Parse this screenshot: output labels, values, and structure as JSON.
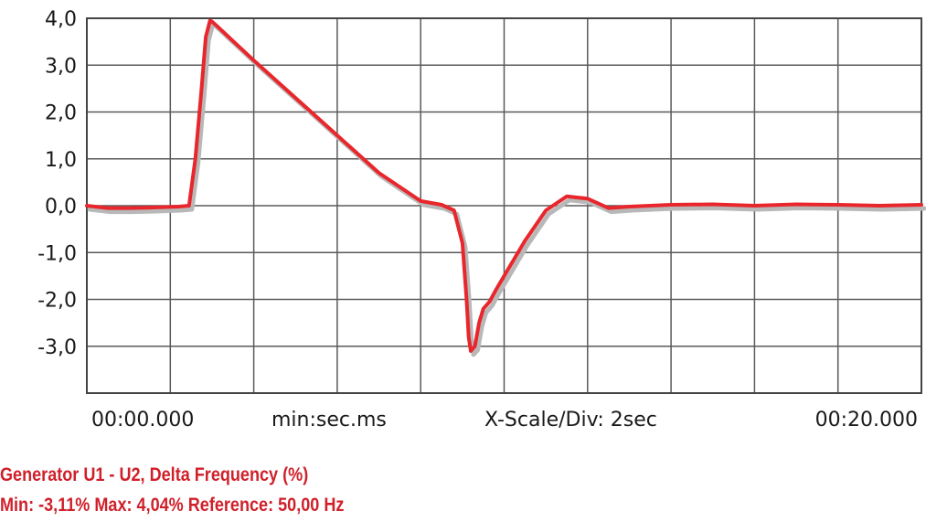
{
  "chart_data": {
    "type": "line",
    "xlim": [
      0,
      20
    ],
    "ylim": [
      -4,
      4
    ],
    "yticks": [
      {
        "value": 4,
        "label": "4,0"
      },
      {
        "value": 3,
        "label": "3,0"
      },
      {
        "value": 2,
        "label": "2,0"
      },
      {
        "value": 1,
        "label": "1,0"
      },
      {
        "value": 0,
        "label": "0,0"
      },
      {
        "value": -1,
        "label": "-1,0"
      },
      {
        "value": -2,
        "label": "-2,0"
      },
      {
        "value": -3,
        "label": "-3,0"
      }
    ],
    "grid": true,
    "series": [
      {
        "color": "#e8262c",
        "x": [
          0,
          0.5,
          1,
          1.5,
          2.2,
          2.45,
          2.6,
          2.75,
          2.85,
          2.95,
          3.0,
          3.1,
          4,
          5,
          6,
          7,
          8,
          8.5,
          8.8,
          9.0,
          9.1,
          9.15,
          9.2,
          9.3,
          9.4,
          9.5,
          9.65,
          9.8,
          10.0,
          10.5,
          11,
          11.5,
          12,
          12.5,
          13,
          13.5,
          14,
          15,
          16,
          17,
          18,
          19,
          20
        ],
        "y": [
          0.0,
          -0.05,
          -0.05,
          -0.04,
          -0.02,
          0.0,
          1.0,
          2.5,
          3.6,
          3.95,
          3.93,
          3.85,
          3.1,
          2.3,
          1.5,
          0.7,
          0.1,
          0.02,
          -0.1,
          -0.8,
          -2.0,
          -2.8,
          -3.1,
          -3.0,
          -2.5,
          -2.2,
          -2.05,
          -1.8,
          -1.5,
          -0.75,
          -0.1,
          0.2,
          0.15,
          -0.05,
          -0.02,
          0.0,
          0.02,
          0.03,
          0.0,
          0.03,
          0.02,
          0.0,
          0.02
        ]
      }
    ]
  },
  "axis": {
    "x_start": "00:00.000",
    "x_unit": "min:sec.ms",
    "x_scale": "X-Scale/Div: 2sec",
    "x_end": "00:20.000"
  },
  "caption": {
    "line1": "Generator U1  - U2, Delta Frequency (%)",
    "line2": "Min: -3,11%   Max: 4,04%   Reference: 50,00 Hz"
  }
}
